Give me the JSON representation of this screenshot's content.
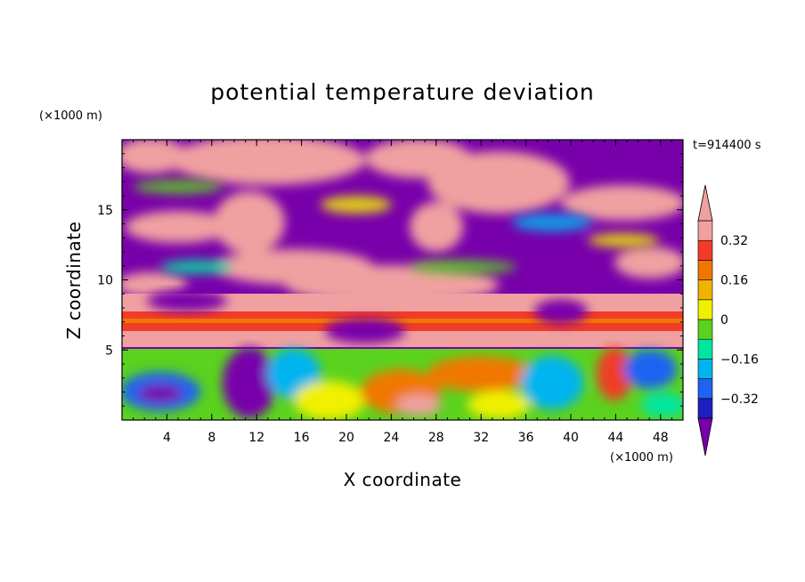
{
  "chart_data": {
    "type": "heatmap",
    "title": "potential temperature deviation",
    "xlabel": "X coordinate",
    "ylabel": "Z coordinate",
    "x_unit": "(×1000 m)",
    "y_unit": "(×1000 m)",
    "time_label": "t=914400 s",
    "xlim": [
      0,
      50
    ],
    "ylim": [
      0,
      20
    ],
    "x_ticks": [
      4,
      8,
      12,
      16,
      20,
      24,
      28,
      32,
      36,
      40,
      44,
      48
    ],
    "y_ticks": [
      5,
      10,
      15
    ],
    "colorbar": {
      "levels": [
        -0.4,
        -0.32,
        -0.24,
        -0.16,
        -0.08,
        0,
        0.08,
        0.16,
        0.24,
        0.32,
        0.4
      ],
      "labeled": [
        0.32,
        0.16,
        0,
        -0.16,
        -0.32
      ],
      "labels_text": [
        "0.32",
        "0.16",
        "0",
        "−0.16",
        "−0.32"
      ],
      "colors_bottom_to_top": [
        "#1f1fc0",
        "#1e64f0",
        "#00b4f0",
        "#00e6a0",
        "#5ad21e",
        "#f0f000",
        "#f0b400",
        "#f07800",
        "#f03c28",
        "#f0a0a0"
      ],
      "under_color": "#7800aa",
      "over_color": "#f0a0a0"
    }
  }
}
